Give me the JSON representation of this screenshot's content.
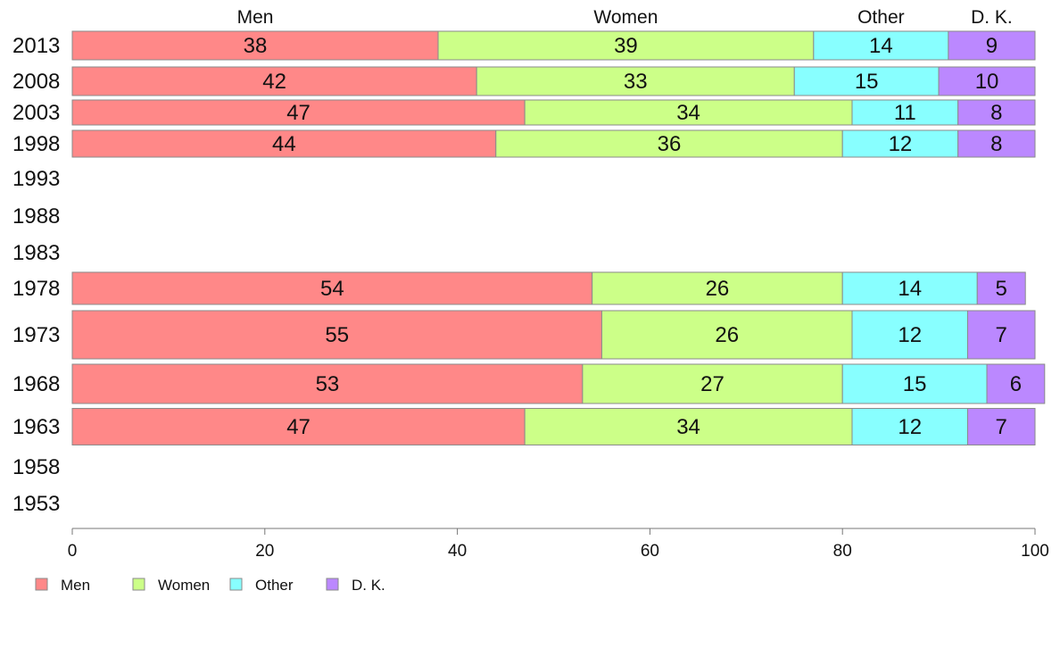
{
  "chart_data": {
    "type": "bar",
    "orientation": "horizontal",
    "stacked": true,
    "categories": [
      "2013",
      "2008",
      "2003",
      "1998",
      "1993",
      "1988",
      "1983",
      "1978",
      "1973",
      "1968",
      "1963",
      "1958",
      "1953"
    ],
    "series": [
      {
        "name": "Men",
        "color": "#ff8888",
        "values": [
          38,
          42,
          47,
          44,
          null,
          null,
          null,
          54,
          55,
          53,
          47,
          null,
          null
        ]
      },
      {
        "name": "Women",
        "color": "#ccff88",
        "values": [
          39,
          33,
          34,
          36,
          null,
          null,
          null,
          26,
          26,
          27,
          34,
          null,
          null
        ]
      },
      {
        "name": "Other",
        "color": "#88ffff",
        "values": [
          14,
          15,
          11,
          12,
          null,
          null,
          null,
          14,
          12,
          15,
          12,
          null,
          null
        ]
      },
      {
        "name": "D. K.",
        "color": "#bb88ff",
        "values": [
          9,
          10,
          8,
          8,
          null,
          null,
          null,
          5,
          7,
          6,
          7,
          null,
          null
        ]
      }
    ],
    "top_labels": [
      "Men",
      "Women",
      "Other",
      "D. K."
    ],
    "x_ticks": [
      "0",
      "20",
      "40",
      "60",
      "80",
      "100"
    ],
    "xlim": [
      0,
      100
    ],
    "grid": false,
    "legend": "bottom-left"
  }
}
